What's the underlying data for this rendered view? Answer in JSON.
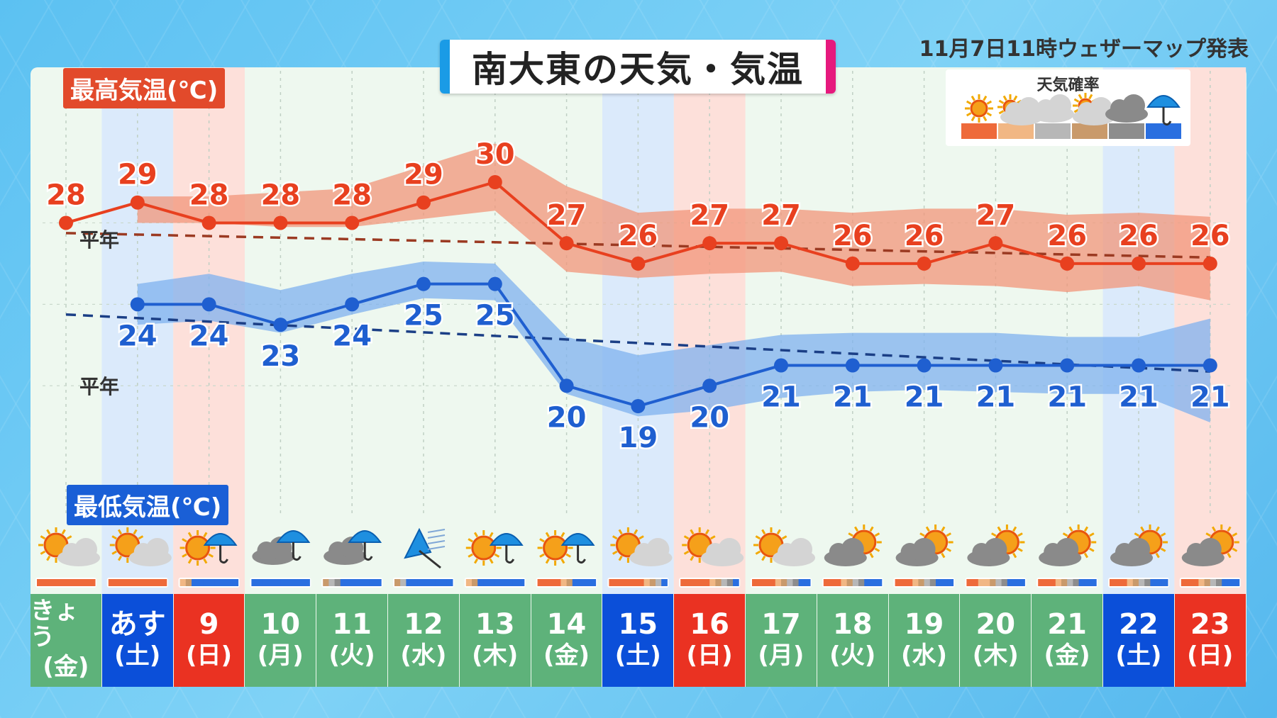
{
  "title": "南大東の天気・気温",
  "issued": "11月7日11時ウェザーマップ発表",
  "max_label": "最高気温(℃)",
  "min_label": "最低気温(℃)",
  "normal_label": "平年",
  "legend_title": "天気確率",
  "colors": {
    "max_line": "#e8401f",
    "max_band": "#f2957a",
    "min_line": "#1f5fd0",
    "min_band": "#7fb1ef",
    "saturday": "#0b4fd9",
    "sunday": "#ea3222",
    "weekday": "#5eb27a",
    "sunny": "#ee6a3a",
    "sunny_cloudy": "#f1b784",
    "cloudy": "#b7b7b7",
    "cloudy_sunny": "#c99a6b",
    "overcast": "#8d8d8d",
    "rain": "#2a6fe0"
  },
  "legend_icons": [
    "sun-icon",
    "sun-cloud-icon",
    "cloud-icon",
    "cloud-sun-icon",
    "dark-cloud-icon",
    "umbrella-icon"
  ],
  "days": [
    {
      "num": "きょう",
      "wd": "(金)",
      "type": "weekday",
      "icon": "sun-cloud"
    },
    {
      "num": "あす",
      "wd": "(土)",
      "type": "saturday",
      "icon": "sun-cloud"
    },
    {
      "num": "9",
      "wd": "(日)",
      "type": "sunday",
      "icon": "sun-umbrella"
    },
    {
      "num": "10",
      "wd": "(月)",
      "type": "weekday",
      "icon": "cloud-umbrella"
    },
    {
      "num": "11",
      "wd": "(火)",
      "type": "weekday",
      "icon": "cloud-umbrella"
    },
    {
      "num": "12",
      "wd": "(水)",
      "type": "weekday",
      "icon": "windy-umbrella"
    },
    {
      "num": "13",
      "wd": "(木)",
      "type": "weekday",
      "icon": "sun-umbrella"
    },
    {
      "num": "14",
      "wd": "(金)",
      "type": "weekday",
      "icon": "sun-umbrella"
    },
    {
      "num": "15",
      "wd": "(土)",
      "type": "saturday",
      "icon": "sun-cloud"
    },
    {
      "num": "16",
      "wd": "(日)",
      "type": "sunday",
      "icon": "sun-cloud"
    },
    {
      "num": "17",
      "wd": "(月)",
      "type": "weekday",
      "icon": "sun-cloud"
    },
    {
      "num": "18",
      "wd": "(火)",
      "type": "weekday",
      "icon": "cloud-sun"
    },
    {
      "num": "19",
      "wd": "(水)",
      "type": "weekday",
      "icon": "cloud-sun"
    },
    {
      "num": "20",
      "wd": "(木)",
      "type": "weekday",
      "icon": "cloud-sun"
    },
    {
      "num": "21",
      "wd": "(金)",
      "type": "weekday",
      "icon": "cloud-sun"
    },
    {
      "num": "22",
      "wd": "(土)",
      "type": "saturday",
      "icon": "cloud-sun"
    },
    {
      "num": "23",
      "wd": "(日)",
      "type": "sunday",
      "icon": "cloud-sun"
    }
  ],
  "weather_prob": [
    [
      "sunny",
      "sunny",
      "sunny",
      "sunny",
      "sunny",
      "sunny",
      "sunny",
      "sunny",
      "sunny",
      "sunny"
    ],
    [
      "sunny",
      "sunny",
      "sunny",
      "sunny",
      "sunny",
      "sunny",
      "sunny",
      "sunny",
      "sunny",
      "sunny"
    ],
    [
      "sunny_cloudy",
      "cloudy_sunny",
      "rain",
      "rain",
      "rain",
      "rain",
      "rain",
      "rain",
      "rain",
      "rain"
    ],
    [
      "rain",
      "rain",
      "rain",
      "rain",
      "rain",
      "rain",
      "rain",
      "rain",
      "rain",
      "rain"
    ],
    [
      "cloudy_sunny",
      "cloudy",
      "overcast",
      "rain",
      "rain",
      "rain",
      "rain",
      "rain",
      "rain",
      "rain"
    ],
    [
      "cloudy_sunny",
      "cloudy",
      "rain",
      "rain",
      "rain",
      "rain",
      "rain",
      "rain",
      "rain",
      "rain"
    ],
    [
      "sunny_cloudy",
      "cloudy_sunny",
      "rain",
      "rain",
      "rain",
      "rain",
      "rain",
      "rain",
      "rain",
      "rain"
    ],
    [
      "sunny",
      "sunny",
      "sunny",
      "sunny",
      "sunny_cloudy",
      "cloudy_sunny",
      "rain",
      "rain",
      "rain",
      "rain"
    ],
    [
      "sunny",
      "sunny",
      "sunny",
      "sunny",
      "sunny",
      "sunny",
      "sunny_cloudy",
      "cloudy_sunny",
      "cloudy",
      "rain"
    ],
    [
      "sunny",
      "sunny",
      "sunny",
      "sunny",
      "sunny",
      "sunny_cloudy",
      "cloudy_sunny",
      "cloudy",
      "overcast",
      "rain"
    ],
    [
      "sunny",
      "sunny",
      "sunny",
      "sunny",
      "sunny_cloudy",
      "cloudy_sunny",
      "cloudy",
      "overcast",
      "rain",
      "rain"
    ],
    [
      "sunny",
      "sunny",
      "sunny",
      "sunny_cloudy",
      "cloudy_sunny",
      "cloudy",
      "overcast",
      "rain",
      "rain",
      "rain"
    ],
    [
      "sunny",
      "sunny",
      "sunny",
      "sunny_cloudy",
      "cloudy_sunny",
      "cloudy",
      "overcast",
      "rain",
      "rain",
      "rain"
    ],
    [
      "sunny",
      "sunny",
      "sunny_cloudy",
      "sunny_cloudy",
      "cloudy_sunny",
      "cloudy",
      "overcast",
      "rain",
      "rain",
      "rain"
    ],
    [
      "sunny",
      "sunny",
      "sunny",
      "sunny_cloudy",
      "cloudy_sunny",
      "cloudy",
      "overcast",
      "rain",
      "rain",
      "rain"
    ],
    [
      "sunny",
      "sunny",
      "sunny",
      "sunny_cloudy",
      "cloudy_sunny",
      "cloudy",
      "overcast",
      "rain",
      "rain",
      "rain"
    ],
    [
      "sunny",
      "sunny",
      "sunny",
      "sunny_cloudy",
      "cloudy_sunny",
      "cloudy",
      "overcast",
      "rain",
      "rain",
      "rain"
    ]
  ],
  "chart_data": {
    "type": "line",
    "title": "南大東の天気・気温",
    "categories": [
      "きょう(金)",
      "あす(土)",
      "9(日)",
      "10(月)",
      "11(火)",
      "12(水)",
      "13(木)",
      "14(金)",
      "15(土)",
      "16(日)",
      "17(月)",
      "18(火)",
      "19(水)",
      "20(木)",
      "21(金)",
      "22(土)",
      "23(日)"
    ],
    "series": [
      {
        "name": "最高気温(℃)",
        "values": [
          28,
          29,
          28,
          28,
          28,
          29,
          30,
          27,
          26,
          27,
          27,
          26,
          26,
          27,
          26,
          26,
          26
        ],
        "band_high": [
          null,
          29.3,
          29.3,
          29.5,
          29.7,
          30.8,
          31.9,
          29.8,
          28.5,
          28.7,
          28.7,
          28.5,
          28.7,
          28.7,
          28.4,
          28.5,
          28.3
        ],
        "band_low": [
          null,
          28.0,
          28.0,
          27.8,
          27.8,
          28.2,
          28.6,
          25.6,
          25.3,
          25.5,
          25.6,
          24.9,
          25.0,
          24.9,
          24.6,
          24.9,
          24.2
        ]
      },
      {
        "name": "最低気温(℃)",
        "values": [
          null,
          24,
          24,
          23,
          24,
          25,
          25,
          20,
          19,
          20,
          21,
          21,
          21,
          21,
          21,
          21,
          21
        ],
        "band_high": [
          null,
          25.0,
          25.5,
          24.7,
          25.5,
          26.1,
          26.0,
          22.4,
          21.5,
          22.0,
          22.5,
          22.6,
          22.6,
          22.6,
          22.4,
          22.4,
          23.3
        ],
        "band_low": [
          null,
          23.0,
          23.2,
          22.6,
          23.5,
          24.3,
          24.2,
          19.6,
          18.5,
          18.8,
          19.4,
          19.7,
          19.8,
          19.7,
          19.6,
          19.6,
          18.2
        ]
      }
    ],
    "normal_max": [
      27.5,
      null,
      null,
      null,
      null,
      null,
      null,
      null,
      null,
      null,
      null,
      null,
      null,
      null,
      null,
      null,
      26.3
    ],
    "normal_min": [
      23.5,
      null,
      null,
      null,
      null,
      null,
      null,
      null,
      null,
      null,
      null,
      null,
      null,
      null,
      null,
      null,
      20.7
    ],
    "ylim": [
      17,
      33
    ],
    "grid": true
  }
}
